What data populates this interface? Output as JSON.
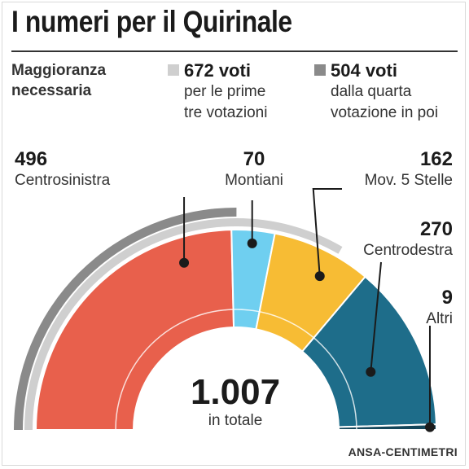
{
  "title": "I numeri per il Quirinale",
  "majority_label": "Maggioranza\nnecessaria",
  "legend": [
    {
      "value": "672 voti",
      "desc": "per le prime\ntre votazioni",
      "color": "#cfcfcf"
    },
    {
      "value": "504 voti",
      "desc": "dalla quarta\nvotazione in poi",
      "color": "#8a8a8a"
    }
  ],
  "chart_data": {
    "type": "pie",
    "subtype": "half-donut",
    "total": 1007,
    "total_label": "1.007",
    "total_caption": "in totale",
    "slices": [
      {
        "name": "Centrosinistra",
        "value": 496,
        "label": "496",
        "color": "#e8604c"
      },
      {
        "name": "Montiani",
        "value": 70,
        "label": "70",
        "color": "#6fcff0"
      },
      {
        "name": "Mov. 5 Stelle",
        "value": 162,
        "label": "162",
        "color": "#f7bc34"
      },
      {
        "name": "Centrodestra",
        "value": 270,
        "label": "270",
        "color": "#1e6d8a"
      },
      {
        "name": "Altri",
        "value": 9,
        "label": "9",
        "color": "#14465a"
      }
    ],
    "thresholds": [
      {
        "value": 672,
        "label": "672 voti",
        "color": "#cfcfcf"
      },
      {
        "value": 504,
        "label": "504 voti",
        "color": "#8a8a8a"
      }
    ]
  },
  "source": "ANSA-CENTIMETRI"
}
